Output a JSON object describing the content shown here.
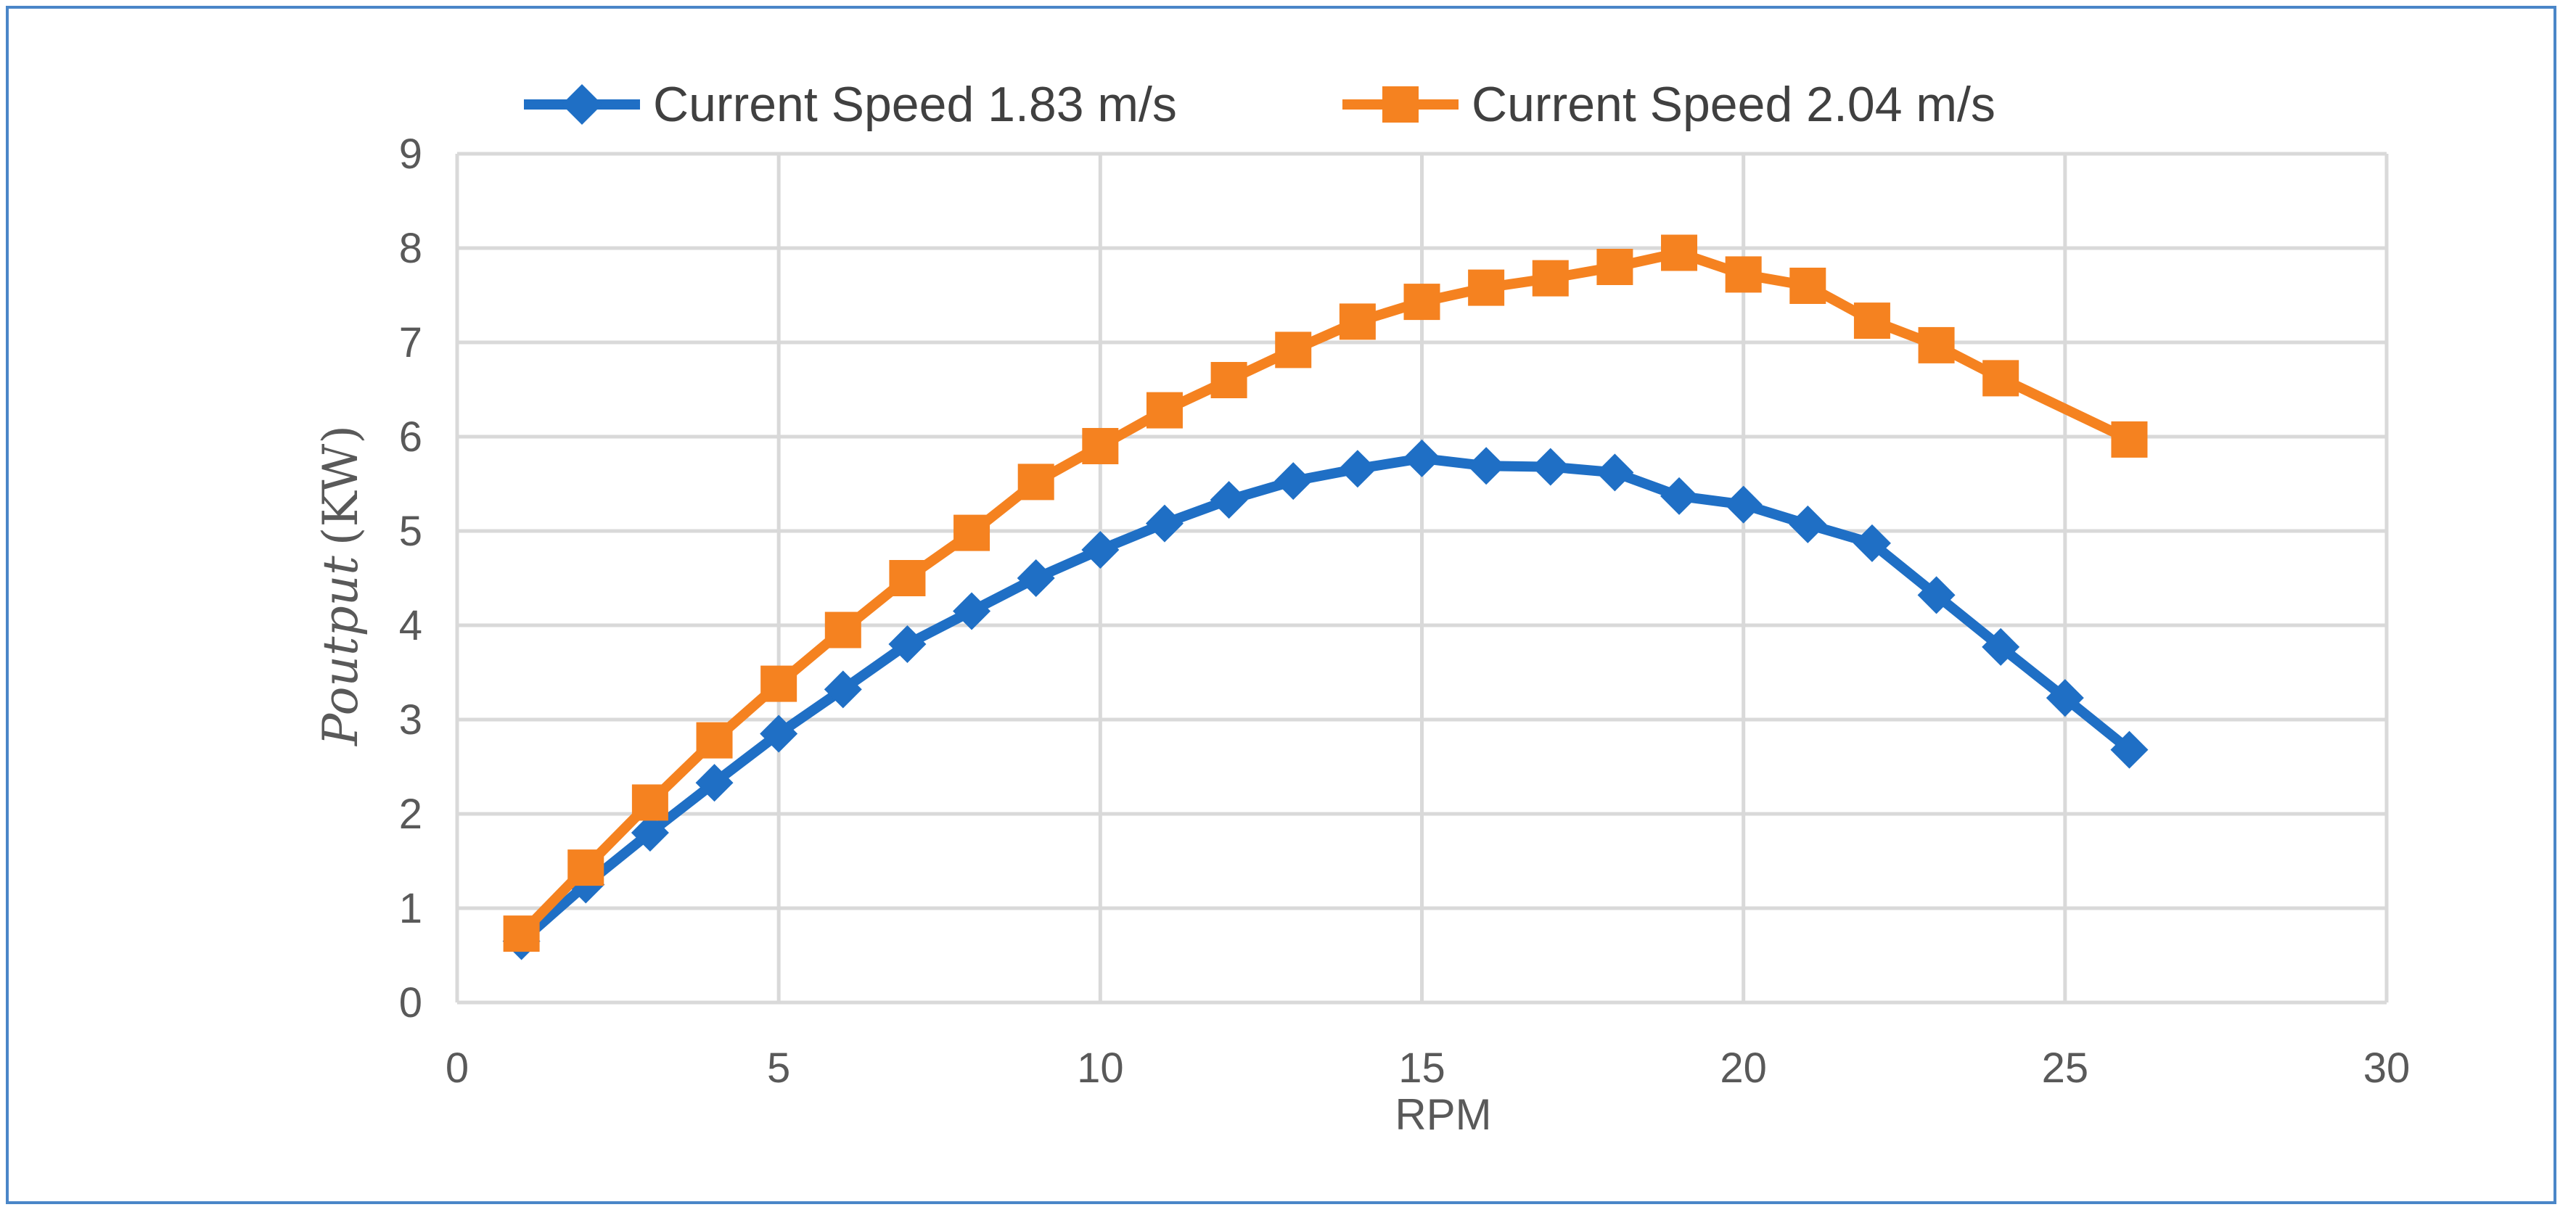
{
  "chart_data": {
    "type": "line",
    "title": "",
    "xlabel": "RPM",
    "ylabel": {
      "italic": "Poutput",
      "unit": "(KW)"
    },
    "xlim": [
      0,
      30
    ],
    "ylim": [
      0,
      9
    ],
    "x_ticks": [
      0,
      5,
      10,
      15,
      20,
      25,
      30
    ],
    "y_ticks": [
      0,
      1,
      2,
      3,
      4,
      5,
      6,
      7,
      8,
      9
    ],
    "grid": true,
    "legend_position": "top",
    "series": [
      {
        "name": "Current Speed 1.83 m/s",
        "color": "#1f6fc5",
        "marker": "diamond",
        "x": [
          1,
          2,
          3,
          4,
          5,
          6,
          7,
          8,
          9,
          10,
          11,
          12,
          13,
          14,
          15,
          16,
          17,
          18,
          19,
          20,
          21,
          22,
          23,
          24,
          25,
          26
        ],
        "y": [
          0.65,
          1.25,
          1.8,
          2.33,
          2.85,
          3.32,
          3.8,
          4.15,
          4.5,
          4.8,
          5.08,
          5.33,
          5.53,
          5.66,
          5.77,
          5.69,
          5.68,
          5.62,
          5.37,
          5.28,
          5.07,
          4.87,
          4.32,
          3.77,
          3.23,
          2.68
        ]
      },
      {
        "name": "Current Speed 2.04 m/s",
        "color": "#f58220",
        "marker": "square",
        "x": [
          1,
          2,
          3,
          4,
          5,
          6,
          7,
          8,
          9,
          10,
          11,
          12,
          13,
          14,
          15,
          16,
          17,
          18,
          19,
          20,
          21,
          22,
          23,
          24,
          26
        ],
        "y": [
          0.73,
          1.43,
          2.12,
          2.78,
          3.38,
          3.95,
          4.5,
          4.98,
          5.52,
          5.9,
          6.28,
          6.6,
          6.92,
          7.22,
          7.43,
          7.58,
          7.68,
          7.8,
          7.95,
          7.72,
          7.6,
          7.23,
          6.97,
          6.62,
          5.97
        ]
      }
    ]
  }
}
